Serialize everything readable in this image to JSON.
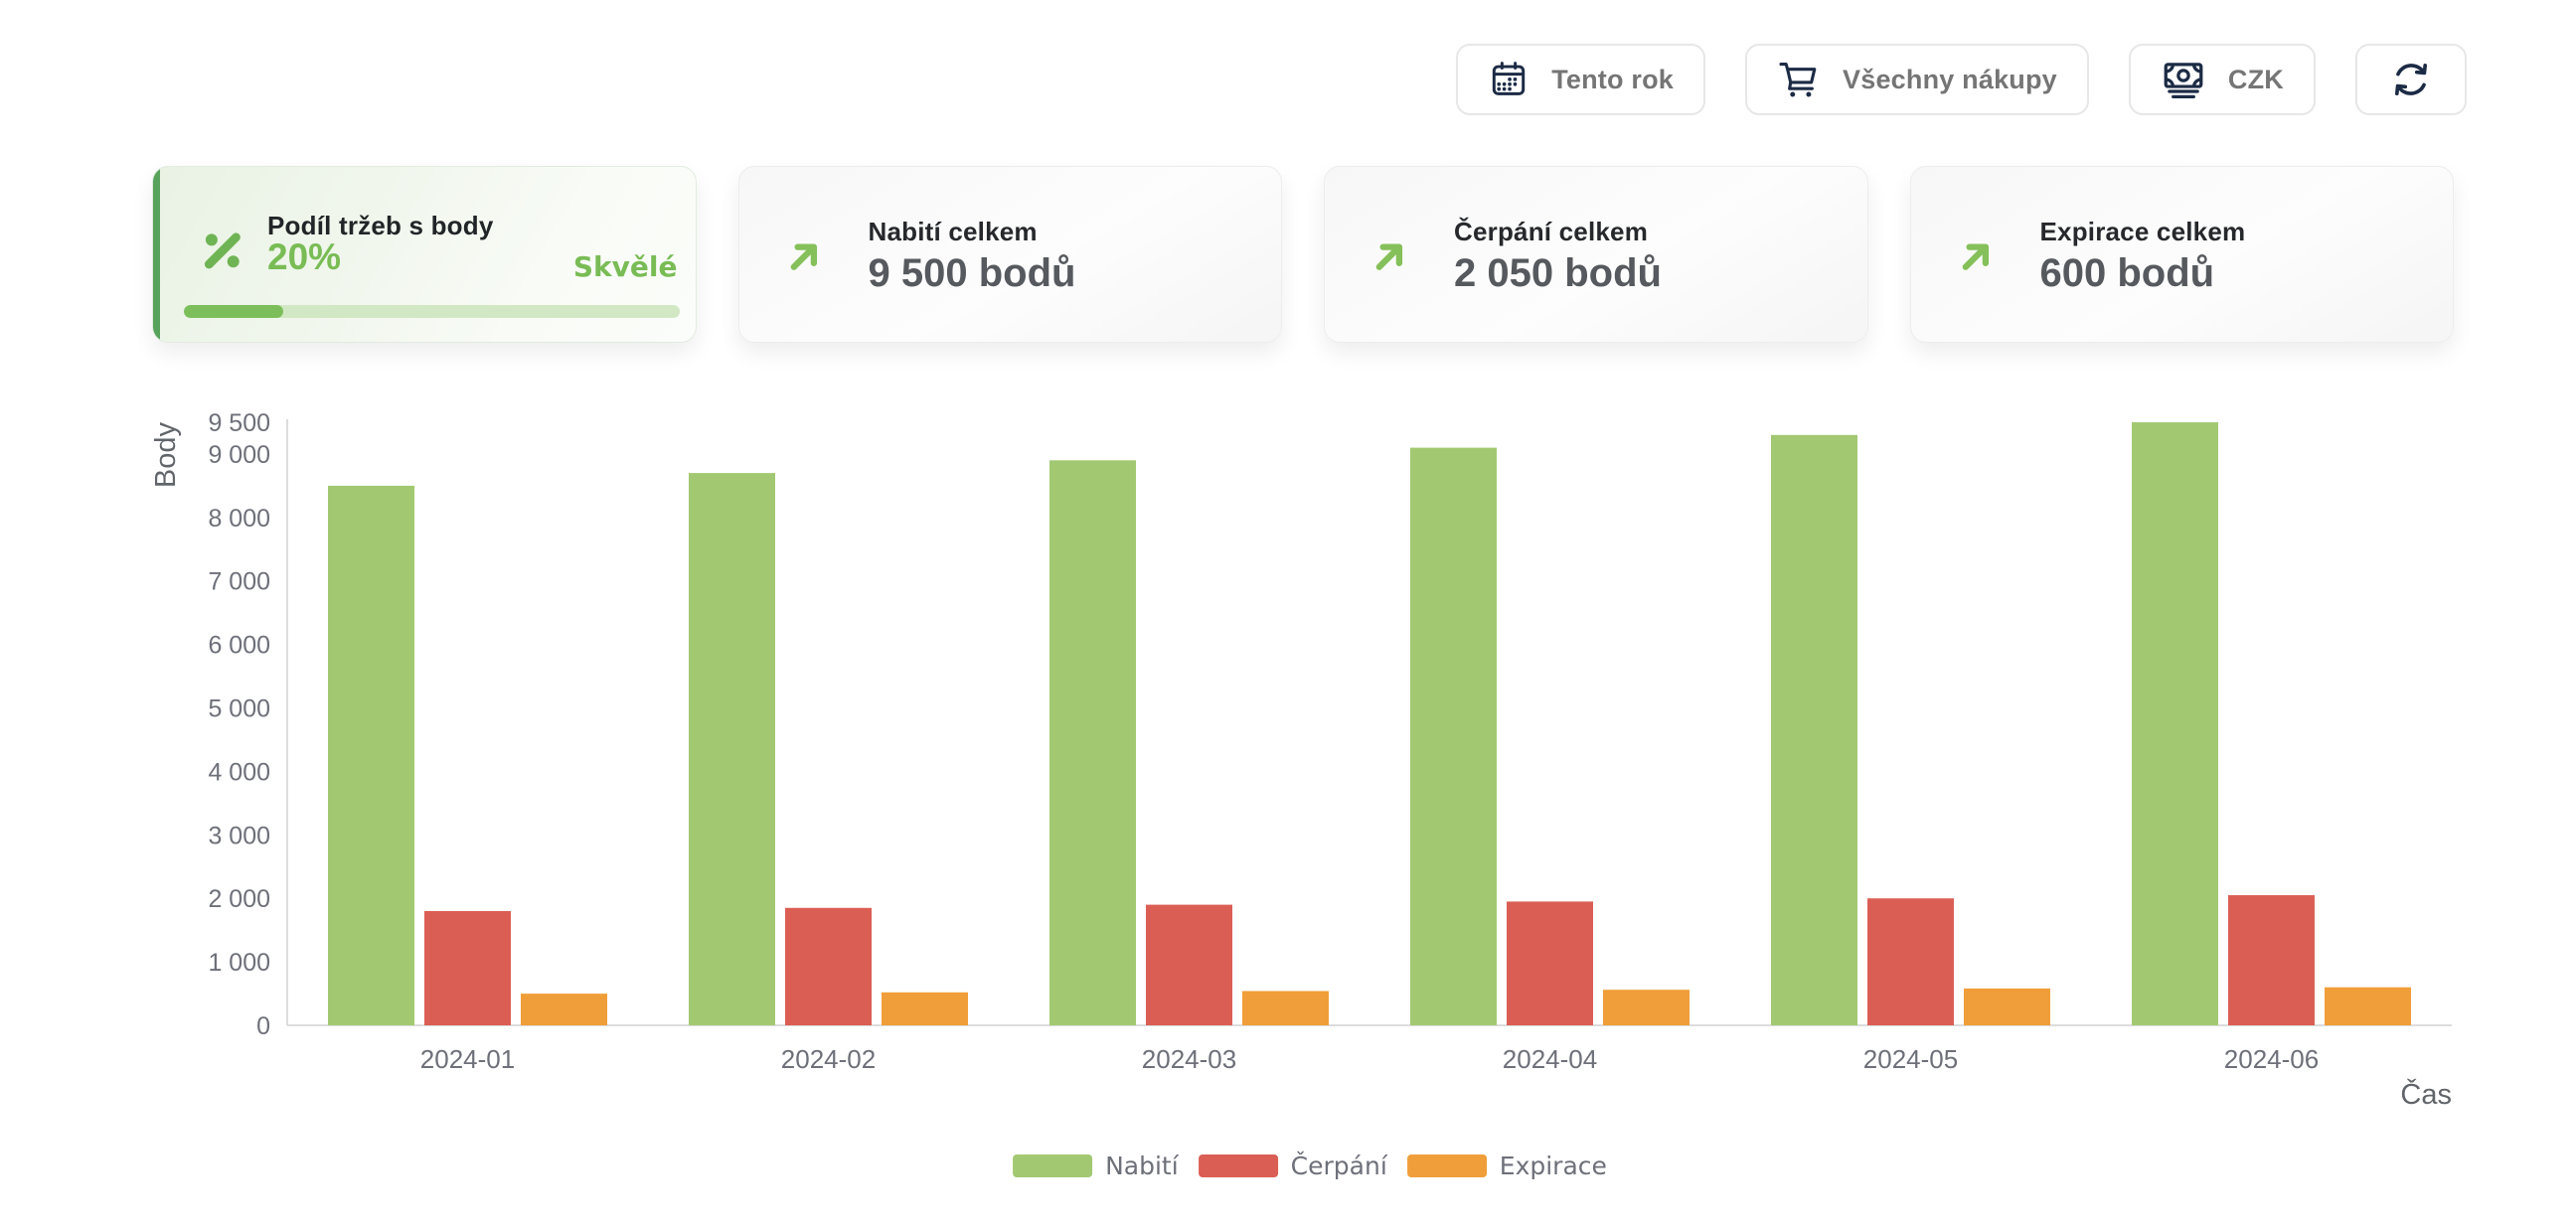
{
  "toolbar": {
    "period_button": {
      "label": "Tento rok",
      "icon": "calendar-icon"
    },
    "purchases_button": {
      "label": "Všechny nákupy",
      "icon": "cart-icon"
    },
    "currency_button": {
      "label": "CZK",
      "icon": "banknote-icon"
    },
    "refresh_button": {
      "icon": "refresh-icon"
    },
    "icon_color": "#1c2b45",
    "label_color": "#757575",
    "border_color": "#e7e7e7"
  },
  "cards": {
    "highlight": {
      "title": "Podíl tržeb s body",
      "value": "20%",
      "badge": "Skvělé",
      "progress_percent": 20,
      "icon": "percent-icon",
      "accent_color": "#57a35b",
      "value_color": "#79bc55",
      "badge_color": "#79bc55",
      "icon_color": "#6fb454",
      "track_color": "#d2e8c4",
      "fill_color": "#7cbf5a"
    },
    "stats": [
      {
        "title": "Nabití celkem",
        "value": "9 500 bodů",
        "icon": "trend-up-icon"
      },
      {
        "title": "Čerpání celkem",
        "value": "2 050 bodů",
        "icon": "trend-up-icon"
      },
      {
        "title": "Expirace celkem",
        "value": "600 bodů",
        "icon": "trend-up-icon"
      }
    ],
    "title_color": "#26282b",
    "value_color": "#56595d",
    "arrow_color": "#85c05a"
  },
  "chart_data": {
    "type": "bar",
    "title": "",
    "xlabel": "Čas",
    "ylabel": "Body",
    "categories": [
      "2024-01",
      "2024-02",
      "2024-03",
      "2024-04",
      "2024-05",
      "2024-06"
    ],
    "series": [
      {
        "name": "Nabití",
        "color": "#a2c972",
        "values": [
          8500,
          8700,
          8900,
          9100,
          9300,
          9500
        ]
      },
      {
        "name": "Čerpání",
        "color": "#db5e54",
        "values": [
          1800,
          1850,
          1900,
          1950,
          2000,
          2050
        ]
      },
      {
        "name": "Expirace",
        "color": "#f09e39",
        "values": [
          500,
          520,
          540,
          560,
          580,
          600
        ]
      }
    ],
    "ylim": [
      0,
      9500
    ],
    "yticks": [
      {
        "value": 0,
        "label": "0"
      },
      {
        "value": 1000,
        "label": "1 000"
      },
      {
        "value": 2000,
        "label": "2 000"
      },
      {
        "value": 3000,
        "label": "3 000"
      },
      {
        "value": 4000,
        "label": "4 000"
      },
      {
        "value": 5000,
        "label": "5 000"
      },
      {
        "value": 6000,
        "label": "6 000"
      },
      {
        "value": 7000,
        "label": "7 000"
      },
      {
        "value": 8000,
        "label": "8 000"
      },
      {
        "value": 9000,
        "label": "9 000"
      },
      {
        "value": 9500,
        "label": "9 500"
      }
    ],
    "grid": false,
    "legend_position": "bottom",
    "axis_color": "#dcdcdc",
    "tick_color": "#6e7079",
    "name_color": "#616569"
  }
}
